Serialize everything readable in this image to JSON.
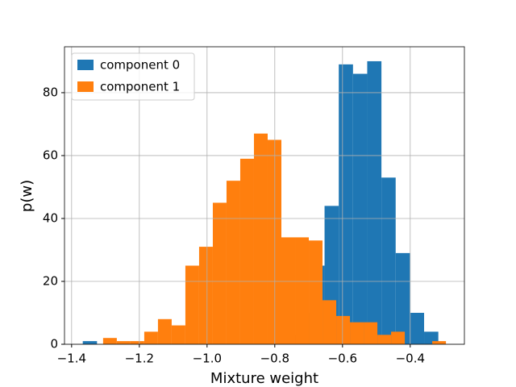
{
  "chart_data": {
    "type": "histogram",
    "xlabel": "Mixture weight",
    "ylabel": "p(w)",
    "series": [
      {
        "name": "component 0",
        "color": "#1f77b4",
        "bins": [
          -1.367,
          -1.325,
          -1.283,
          -1.241,
          -1.199,
          -1.157,
          -1.115,
          -1.073,
          -1.031,
          -0.989,
          -0.947,
          -0.905,
          -0.863,
          -0.821,
          -0.779,
          -0.737,
          -0.695,
          -0.653,
          -0.611,
          -0.569,
          -0.527,
          -0.485,
          -0.443,
          -0.401,
          -0.359,
          -0.317
        ],
        "values": [
          1,
          0,
          0,
          0,
          0,
          0,
          0,
          0,
          0,
          0,
          0,
          0,
          0,
          0,
          3,
          10,
          25,
          44,
          89,
          86,
          90,
          53,
          29,
          10,
          4
        ]
      },
      {
        "name": "component 1",
        "color": "#ff7f0e",
        "bins": [
          -1.307,
          -1.2665,
          -1.226,
          -1.1855,
          -1.145,
          -1.1045,
          -1.064,
          -1.0235,
          -0.983,
          -0.9425,
          -0.902,
          -0.8615,
          -0.821,
          -0.7805,
          -0.74,
          -0.6995,
          -0.659,
          -0.6185,
          -0.578,
          -0.5375,
          -0.497,
          -0.4565,
          -0.416,
          -0.3755,
          -0.335,
          -0.2945
        ],
        "values": [
          2,
          1,
          1,
          4,
          8,
          6,
          25,
          31,
          45,
          52,
          59,
          67,
          65,
          34,
          34,
          33,
          14,
          9,
          7,
          7,
          3,
          4,
          0,
          0,
          1
        ]
      }
    ],
    "xlim": [
      -1.421,
      -0.24
    ],
    "ylim": [
      0,
      94.6
    ],
    "xticks": [
      {
        "value": -1.4,
        "label": "−1.4"
      },
      {
        "value": -1.2,
        "label": "−1.2"
      },
      {
        "value": -1.0,
        "label": "−1.0"
      },
      {
        "value": -0.8,
        "label": "−0.8"
      },
      {
        "value": -0.6,
        "label": "−0.6"
      },
      {
        "value": -0.4,
        "label": "−0.4"
      }
    ],
    "yticks": [
      0,
      20,
      40,
      60,
      80
    ],
    "grid": true,
    "legend": "upper left"
  }
}
